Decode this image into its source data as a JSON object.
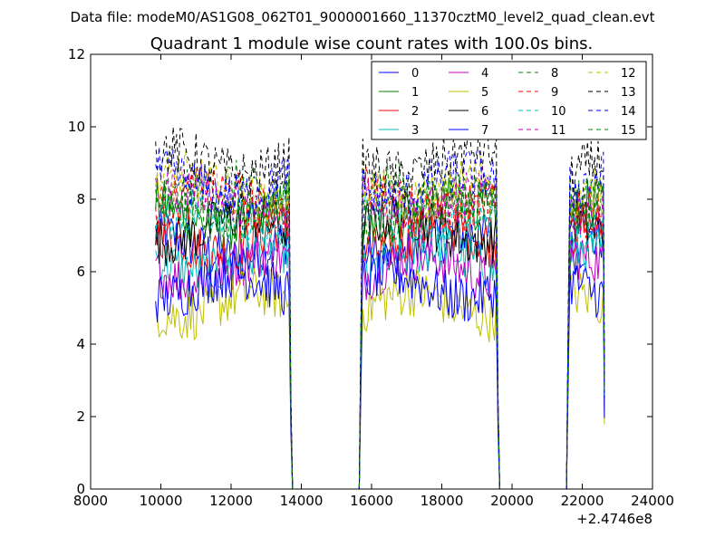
{
  "figure": {
    "suptitle": "Data file: modeM0/AS1G08_062T01_9000001660_11370cztM0_level2_quad_clean.evt",
    "title": "Quadrant 1 module wise count rates with 100.0s bins.",
    "x_offset_label": "+2.4746e8"
  },
  "chart_data": {
    "type": "line",
    "title": "Quadrant 1 module wise count rates with 100.0s bins.",
    "xlabel": "",
    "ylabel": "",
    "xlim": [
      8000,
      24000
    ],
    "ylim": [
      0,
      12
    ],
    "x_offset": 247460000,
    "x_ticks": [
      8000,
      10000,
      12000,
      14000,
      16000,
      18000,
      20000,
      22000,
      24000
    ],
    "y_ticks": [
      0,
      2,
      4,
      6,
      8,
      10,
      12
    ],
    "x_tick_labels": [
      "8000",
      "10000",
      "12000",
      "14000",
      "16000",
      "18000",
      "20000",
      "22000",
      "24000"
    ],
    "y_tick_labels": [
      "0",
      "2",
      "4",
      "6",
      "8",
      "10",
      "12"
    ],
    "grid": false,
    "legend": {
      "placement": "top-right",
      "columns": 4
    },
    "segments": [
      {
        "start": 9850,
        "end": 13650
      },
      {
        "start": 15750,
        "end": 19550
      },
      {
        "start": 21650,
        "end": 22600
      }
    ],
    "gaps_zero": [
      {
        "start": 13750,
        "end": 15650
      },
      {
        "start": 19650,
        "end": 21550
      }
    ],
    "series": [
      {
        "name": "0",
        "color": "#0000ff",
        "dash": false,
        "mean": 6.7
      },
      {
        "name": "1",
        "color": "#008000",
        "dash": false,
        "mean": 7.6
      },
      {
        "name": "2",
        "color": "#ff0000",
        "dash": false,
        "mean": 6.9
      },
      {
        "name": "3",
        "color": "#00bfbf",
        "dash": false,
        "mean": 6.3
      },
      {
        "name": "4",
        "color": "#bf00bf",
        "dash": false,
        "mean": 6.1
      },
      {
        "name": "5",
        "color": "#bfbf00",
        "dash": false,
        "mean": 5.1
      },
      {
        "name": "6",
        "color": "#000000",
        "dash": false,
        "mean": 7.2
      },
      {
        "name": "7",
        "color": "#0000ff",
        "dash": false,
        "mean": 5.6
      },
      {
        "name": "8",
        "color": "#008000",
        "dash": true,
        "mean": 8.1
      },
      {
        "name": "9",
        "color": "#ff0000",
        "dash": true,
        "mean": 7.9
      },
      {
        "name": "10",
        "color": "#00bfbf",
        "dash": true,
        "mean": 7.4
      },
      {
        "name": "11",
        "color": "#bf00bf",
        "dash": true,
        "mean": 8.0
      },
      {
        "name": "12",
        "color": "#bfbf00",
        "dash": true,
        "mean": 8.3
      },
      {
        "name": "13",
        "color": "#000000",
        "dash": true,
        "mean": 9.0
      },
      {
        "name": "14",
        "color": "#0000ff",
        "dash": true,
        "mean": 8.4
      },
      {
        "name": "15",
        "color": "#008000",
        "dash": true,
        "mean": 7.7
      }
    ]
  }
}
